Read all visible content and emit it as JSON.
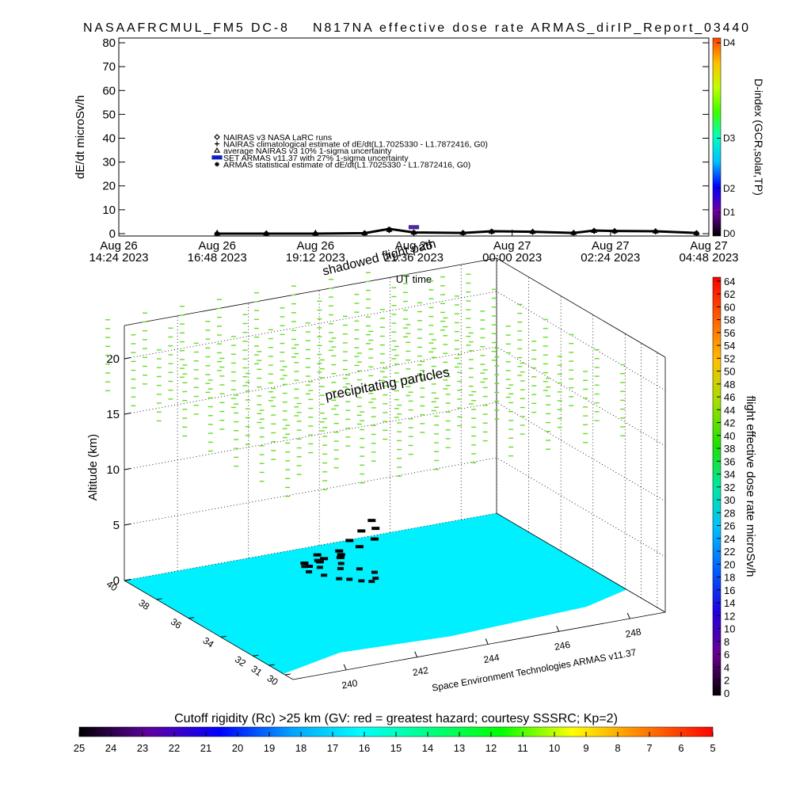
{
  "chart_data": [
    {
      "type": "line",
      "title": "NASAAFRCMUL_FM5 DC-8    N817NA effective dose rate ARMAS_dirIP_Report_03440",
      "ylabel": "dE/dt microSv/h",
      "xlabel": "UT time",
      "y2label": "D-index (GCR,solar,TP)",
      "x": [
        "2023-08-26 16:48",
        "2023-08-26 18:00",
        "2023-08-26 19:12",
        "2023-08-26 20:24",
        "2023-08-26 21:00",
        "2023-08-26 21:36",
        "2023-08-26 22:48",
        "2023-08-26 23:30",
        "2023-08-27 00:30",
        "2023-08-27 01:30",
        "2023-08-27 02:00",
        "2023-08-27 02:30",
        "2023-08-27 03:30",
        "2023-08-27 04:30"
      ],
      "series": [
        {
          "name": "NAIRAS v3 NASA LaRC runs",
          "marker": "diamond",
          "color": "#000000",
          "values": [
            0.1,
            0.1,
            0.1,
            0.2,
            1.5,
            0.4,
            0.3,
            0.8,
            0.7,
            0.3,
            1.1,
            1.0,
            0.9,
            0.2
          ]
        },
        {
          "name": "NAIRAS climatological estimate of dE/dt(L1.7025330 - L1.7872416, G0)",
          "marker": "plus",
          "color": "#000000",
          "values": [
            0.1,
            0.1,
            0.1,
            0.2,
            1.3,
            0.4,
            0.3,
            0.7,
            0.6,
            0.3,
            1.0,
            0.9,
            0.8,
            0.2
          ]
        },
        {
          "name": "average NAIRAS v3 10% 1-sigma uncertainty",
          "marker": "triangle",
          "color": "#000000",
          "values": [
            0.1,
            0.1,
            0.1,
            0.2,
            1.6,
            0.5,
            0.3,
            0.9,
            0.8,
            0.3,
            1.2,
            1.1,
            1.0,
            0.2
          ]
        },
        {
          "name": "SET ARMAS v11.37 with 27% 1-sigma uncertainty",
          "marker": "dot",
          "color": "#4a2a9a",
          "values": [
            null,
            null,
            null,
            null,
            null,
            2.7,
            null,
            null,
            null,
            null,
            null,
            null,
            null,
            null
          ]
        },
        {
          "name": "ARMAS statistical estimate of dE/dt(L1.7025330 - L1.7872416, G0)",
          "marker": "asterisk",
          "color": "#000000",
          "line": true,
          "values": [
            0,
            0,
            0,
            0.2,
            2,
            0.5,
            0.3,
            1,
            0.8,
            0.3,
            1.3,
            1.1,
            1,
            0.3
          ]
        }
      ],
      "xlim": [
        "2023-08-26 14:24",
        "2023-08-27 04:48"
      ],
      "xticks": [
        {
          "value": "2023-08-26 14:24",
          "label": "Aug 26\n14:24 2023"
        },
        {
          "value": "2023-08-26 16:48",
          "label": "Aug 26\n16:48 2023"
        },
        {
          "value": "2023-08-26 19:12",
          "label": "Aug 26\n19:12 2023"
        },
        {
          "value": "2023-08-26 21:36",
          "label": "Aug 26\n21:36 2023"
        },
        {
          "value": "2023-08-27 00:00",
          "label": "Aug 27\n00:00 2023"
        },
        {
          "value": "2023-08-27 02:24",
          "label": "Aug 27\n02:24 2023"
        },
        {
          "value": "2023-08-27 04:48",
          "label": "Aug 27\n04:48 2023"
        }
      ],
      "ylim": [
        -1,
        82
      ],
      "yticks": [
        0,
        10,
        20,
        30,
        40,
        50,
        60,
        70,
        80
      ],
      "y2lim": [
        -1,
        82
      ],
      "y2ticks": [
        {
          "value": 0,
          "label": "D0"
        },
        {
          "value": 9,
          "label": "D1"
        },
        {
          "value": 19,
          "label": "D2"
        },
        {
          "value": 40,
          "label": "D3"
        },
        {
          "value": 80,
          "label": "D4"
        }
      ],
      "y2colors": [
        "#000000",
        "#7000a0",
        "#0000ff",
        "#00c0ff",
        "#00ffc0",
        "#40ff00",
        "#c0ff00",
        "#ffc000",
        "#ff4000"
      ]
    },
    {
      "type": "scatter3d",
      "zlabel": "Altitude (km)",
      "xlim": [
        238.5,
        249
      ],
      "xticks": [
        240,
        242,
        244,
        246,
        248
      ],
      "ylim": [
        29.5,
        40
      ],
      "yticks": [
        30,
        31,
        32,
        34,
        36,
        38,
        40
      ],
      "zlim": [
        0,
        23
      ],
      "zticks": [
        0,
        5,
        10,
        15,
        20
      ],
      "annotations": [
        "shadowed flight path",
        "precipitating particles",
        "Space Environment Technologies ARMAS v11.37"
      ],
      "track": {
        "lon": [
          242.8,
          243.0,
          243.2,
          243.4,
          243.6,
          243.8,
          244.0,
          244.2,
          244.0,
          243.6,
          243.2,
          242.9,
          243.4,
          243.8
        ],
        "lat": [
          38,
          37.5,
          37,
          36.8,
          36.5,
          36.3,
          36.5,
          37,
          37.5,
          37.8,
          38.2,
          38.5,
          38.8,
          38.2
        ],
        "alt": [
          0.5,
          1.5,
          2.5,
          3.5,
          4.5,
          5.5,
          4.5,
          3,
          2,
          1,
          0.5,
          0.3,
          0.5,
          0.8
        ]
      }
    },
    {
      "type": "colorbar",
      "orientation": "vertical",
      "label": "flight effective dose rate microSv/h",
      "lim": [
        -0.4,
        64.6
      ],
      "ticks": [
        0,
        2,
        4,
        6,
        8,
        10,
        12,
        14,
        16,
        18,
        20,
        22,
        24,
        26,
        28,
        30,
        32,
        34,
        36,
        38,
        40,
        42,
        44,
        46,
        48,
        50,
        52,
        54,
        56,
        58,
        60,
        62,
        64
      ],
      "colors": [
        "#000000",
        "#6a0090",
        "#2000e0",
        "#0060ff",
        "#00c0ff",
        "#00e8a0",
        "#20e000",
        "#a0e000",
        "#ffc000",
        "#ff6000",
        "#ff0000"
      ]
    },
    {
      "type": "colorbar",
      "orientation": "horizontal",
      "label": "Cutoff rigidity (Rc) >25 km (GV: red = greatest hazard; courtesy SSSRC; Kp=2)",
      "lim": [
        25,
        5
      ],
      "ticks": [
        25,
        24,
        23,
        22,
        21,
        20,
        19,
        18,
        17,
        16,
        15,
        14,
        13,
        12,
        11,
        10,
        9,
        8,
        7,
        6,
        5
      ],
      "colors": [
        "#000000",
        "#6000a0",
        "#0000ff",
        "#00a0ff",
        "#00ffff",
        "#00ff80",
        "#00ff00",
        "#ffff00",
        "#ff8000",
        "#ff0000"
      ]
    }
  ]
}
